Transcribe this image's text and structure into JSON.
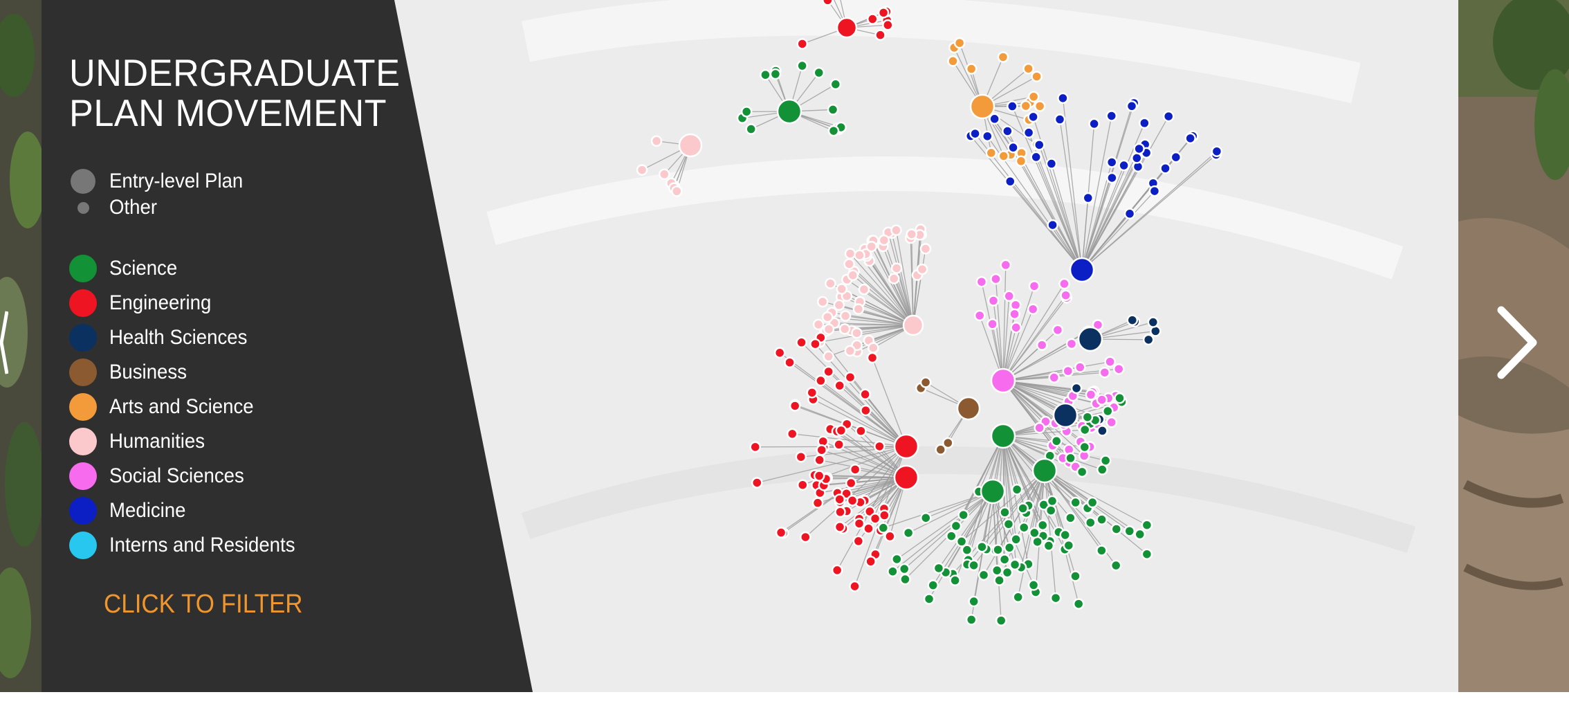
{
  "title": {
    "line1": "UNDERGRADUATE",
    "line2": "PLAN MOVEMENT"
  },
  "size_legend": [
    {
      "label": "Entry-level Plan"
    },
    {
      "label": "Other"
    }
  ],
  "categories": [
    {
      "label": "Science",
      "color": "#129136"
    },
    {
      "label": "Engineering",
      "color": "#ee1422"
    },
    {
      "label": "Health Sciences",
      "color": "#0b3161"
    },
    {
      "label": "Business",
      "color": "#8c5a30"
    },
    {
      "label": "Arts and Science",
      "color": "#f39a3b"
    },
    {
      "label": "Humanities",
      "color": "#fbc8cc"
    },
    {
      "label": "Social Sciences",
      "color": "#f76bef"
    },
    {
      "label": "Medicine",
      "color": "#0b1fc4"
    },
    {
      "label": "Interns and Residents",
      "color": "#27c7ef"
    }
  ],
  "filter_label": "CLICK TO FILTER",
  "colors": {
    "panel": "#2f2f2f",
    "accent": "#f0962d",
    "legend_grey": "#777777",
    "link": "#9a9a9a",
    "graph_bg": "#ececec"
  },
  "icons": {
    "next": "chevron-right-icon",
    "prev": "chevron-left-icon"
  }
}
